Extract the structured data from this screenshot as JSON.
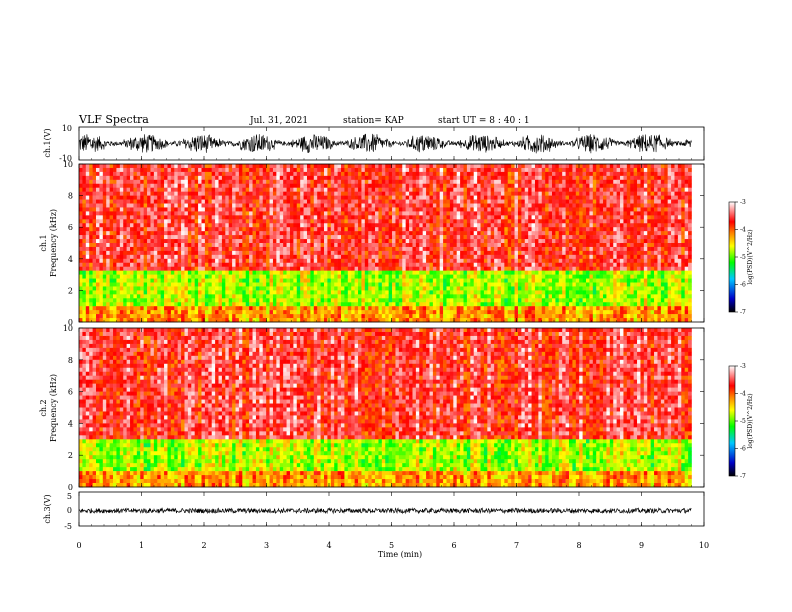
{
  "header": {
    "title": "VLF Spectra",
    "date": "Jul. 31, 2021",
    "station": "station= KAP",
    "start": "start  UT =  8 : 40 : 1"
  },
  "chart_data": [
    {
      "type": "line",
      "panel": "ch1-waveform",
      "ylabel": "ch.1(V)",
      "yticks": [
        "10",
        "-10"
      ],
      "ylim": [
        -10,
        10
      ],
      "xlim": [
        0,
        10
      ],
      "series": [
        {
          "description_values": "noisy waveform, approx -6 to +6 V",
          "values_range": [
            -6,
            6
          ]
        }
      ],
      "line_color": "#000000"
    },
    {
      "type": "heatmap",
      "panel": "ch1-spectrogram",
      "ylabel_top": "ch.1",
      "ylabel": "Frequency (kHz)",
      "yticks": [
        "0",
        "2",
        "4",
        "6",
        "8",
        "10"
      ],
      "ylim": [
        0,
        10
      ],
      "xlim": [
        0,
        9.8
      ],
      "colorbar": {
        "label": "log(PSD)(V^2/Hz)",
        "ticks": [
          "-3",
          "-4",
          "-5",
          "-6",
          "-7"
        ],
        "range": [
          -7,
          -3
        ]
      },
      "bands": [
        {
          "freq_khz": [
            0,
            1.0
          ],
          "level": -4.2
        },
        {
          "freq_khz": [
            1.0,
            3.3
          ],
          "level": -4.8
        },
        {
          "freq_khz": [
            3.3,
            10
          ],
          "level": -3.6
        }
      ]
    },
    {
      "type": "heatmap",
      "panel": "ch2-spectrogram",
      "ylabel_top": "ch.2",
      "ylabel": "Frequency (kHz)",
      "yticks": [
        "0",
        "2",
        "4",
        "6",
        "8",
        "10"
      ],
      "ylim": [
        0,
        10
      ],
      "xlim": [
        0,
        9.8
      ],
      "colorbar": {
        "label": "log(PSD)(V^2/Hz)",
        "ticks": [
          "-3",
          "-4",
          "-5",
          "-6",
          "-7"
        ],
        "range": [
          -7,
          -3
        ]
      },
      "bands": [
        {
          "freq_khz": [
            0,
            1.0
          ],
          "level": -4.2
        },
        {
          "freq_khz": [
            1.0,
            3.0
          ],
          "level": -4.8
        },
        {
          "freq_khz": [
            3.0,
            10
          ],
          "level": -3.6
        }
      ]
    },
    {
      "type": "line",
      "panel": "ch3-waveform",
      "ylabel": "ch.3(V)",
      "yticks": [
        "5",
        "0",
        "-5"
      ],
      "ylim": [
        -5,
        5
      ],
      "xlim": [
        0,
        10
      ],
      "series": [
        {
          "values_range": [
            -1.2,
            0.2
          ]
        }
      ],
      "line_color": "#000000"
    }
  ],
  "xaxis": {
    "label": "Time (min)",
    "ticks": [
      "0",
      "1",
      "2",
      "3",
      "4",
      "5",
      "6",
      "7",
      "8",
      "9",
      "10"
    ],
    "range": [
      0,
      10
    ]
  },
  "colormap_stops": [
    "#000000",
    "#0000c8",
    "#00c8ff",
    "#00ff00",
    "#ffff00",
    "#ff8000",
    "#ff0000",
    "#ffffff"
  ]
}
